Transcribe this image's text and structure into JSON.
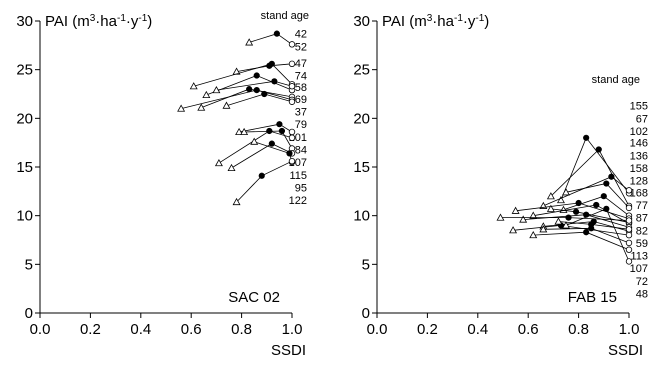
{
  "chart_data": [
    {
      "type": "line",
      "panel_label": "SAC 02",
      "ylabel": "PAI (m³·ha⁻¹·y⁻¹)",
      "xlabel": "SSDI",
      "legend_title": "stand age",
      "xlim": [
        0,
        1.0
      ],
      "ylim": [
        0,
        30
      ],
      "x_ticks": [
        "0.0",
        "0.2",
        "0.4",
        "0.6",
        "0.8",
        "1.0"
      ],
      "y_ticks": [
        "0",
        "5",
        "10",
        "15",
        "20",
        "25",
        "30"
      ],
      "stand_age_labels": [
        {
          "label": "42",
          "y": 28.7
        },
        {
          "label": "52",
          "y": 27.4
        },
        {
          "label": "47",
          "y": 25.7
        },
        {
          "label": "74",
          "y": 24.4
        },
        {
          "label": "58",
          "y": 23.2
        },
        {
          "label": "69",
          "y": 22.0
        },
        {
          "label": "37",
          "y": 20.7
        },
        {
          "label": "79",
          "y": 19.4
        },
        {
          "label": "101",
          "y": 18.1
        },
        {
          "label": "84",
          "y": 16.8
        },
        {
          "label": "107",
          "y": 15.5
        },
        {
          "label": "115",
          "y": 14.2
        },
        {
          "label": "95",
          "y": 12.9
        },
        {
          "label": "122",
          "y": 11.6
        }
      ],
      "series": [
        {
          "x": [
            0.83,
            0.94,
            1.0
          ],
          "y": [
            27.8,
            28.7,
            27.6
          ]
        },
        {
          "x": [
            0.78,
            0.91,
            1.0
          ],
          "y": [
            24.8,
            25.4,
            25.6
          ]
        },
        {
          "x": [
            0.61,
            0.92,
            1.0
          ],
          "y": [
            23.3,
            25.6,
            23.5
          ]
        },
        {
          "x": [
            0.66,
            0.86,
            1.0
          ],
          "y": [
            22.4,
            24.4,
            22.9
          ]
        },
        {
          "x": [
            0.7,
            0.93,
            1.0
          ],
          "y": [
            22.9,
            23.8,
            23.3
          ]
        },
        {
          "x": [
            0.64,
            0.83,
            1.0
          ],
          "y": [
            21.1,
            23.0,
            22.2
          ]
        },
        {
          "x": [
            0.56,
            0.86,
            1.0
          ],
          "y": [
            21.0,
            22.9,
            21.9
          ]
        },
        {
          "x": [
            0.74,
            0.89,
            1.0
          ],
          "y": [
            21.3,
            22.5,
            21.7
          ]
        },
        {
          "x": [
            0.79,
            0.95,
            1.0
          ],
          "y": [
            18.6,
            19.4,
            18.6
          ]
        },
        {
          "x": [
            0.71,
            0.91,
            1.0
          ],
          "y": [
            15.4,
            18.7,
            18.0
          ]
        },
        {
          "x": [
            0.81,
            0.96,
            1.0
          ],
          "y": [
            18.6,
            18.7,
            16.9
          ]
        },
        {
          "x": [
            0.76,
            0.92,
            1.0
          ],
          "y": [
            14.9,
            17.4,
            16.4
          ]
        },
        {
          "x": [
            0.85,
            0.99,
            1.0
          ],
          "y": [
            17.6,
            16.4,
            15.5
          ]
        },
        {
          "x": [
            0.78,
            0.88,
            1.0
          ],
          "y": [
            11.4,
            14.1,
            15.6
          ]
        }
      ]
    },
    {
      "type": "line",
      "panel_label": "FAB 15",
      "ylabel": "PAI (m³·ha⁻¹·y⁻¹)",
      "xlabel": "SSDI",
      "legend_title": "stand age",
      "xlim": [
        0,
        1.0
      ],
      "ylim": [
        0,
        30
      ],
      "x_ticks": [
        "0.0",
        "0.2",
        "0.4",
        "0.6",
        "0.8",
        "1.0"
      ],
      "y_ticks": [
        "0",
        "5",
        "10",
        "15",
        "20",
        "25",
        "30"
      ],
      "stand_age_labels": [
        {
          "label": "155",
          "y": 21.3
        },
        {
          "label": "67",
          "y": 20.0
        },
        {
          "label": "102",
          "y": 18.7
        },
        {
          "label": "146",
          "y": 17.5
        },
        {
          "label": "136",
          "y": 16.2
        },
        {
          "label": "158",
          "y": 14.9
        },
        {
          "label": "128",
          "y": 13.6
        },
        {
          "label": "168",
          "y": 12.4
        },
        {
          "label": "77",
          "y": 11.1
        },
        {
          "label": "87",
          "y": 9.8
        },
        {
          "label": "82",
          "y": 8.5
        },
        {
          "label": "59",
          "y": 7.2
        },
        {
          "label": "113",
          "y": 5.9
        },
        {
          "label": "107",
          "y": 4.6
        },
        {
          "label": "72",
          "y": 3.3
        },
        {
          "label": "48",
          "y": 2.0
        }
      ],
      "series": [
        {
          "x": [
            0.73,
            0.83,
            1.0
          ],
          "y": [
            11.6,
            18.0,
            12.3
          ]
        },
        {
          "x": [
            0.69,
            0.88,
            1.0
          ],
          "y": [
            12.0,
            16.8,
            11.0
          ]
        },
        {
          "x": [
            0.66,
            0.93,
            1.0
          ],
          "y": [
            11.0,
            14.0,
            12.6
          ]
        },
        {
          "x": [
            0.75,
            0.91,
            1.0
          ],
          "y": [
            12.4,
            13.3,
            10.8
          ]
        },
        {
          "x": [
            0.74,
            0.9,
            1.0
          ],
          "y": [
            10.6,
            12.0,
            10.0
          ]
        },
        {
          "x": [
            0.55,
            0.8,
            1.0
          ],
          "y": [
            10.5,
            11.3,
            9.7
          ]
        },
        {
          "x": [
            0.62,
            0.87,
            1.0
          ],
          "y": [
            10.0,
            11.1,
            9.2
          ]
        },
        {
          "x": [
            0.69,
            0.79,
            1.0
          ],
          "y": [
            10.7,
            10.4,
            9.3
          ]
        },
        {
          "x": [
            0.58,
            0.83,
            1.0
          ],
          "y": [
            9.6,
            10.1,
            8.8
          ]
        },
        {
          "x": [
            0.49,
            0.76,
            1.0
          ],
          "y": [
            9.8,
            9.8,
            9.5
          ]
        },
        {
          "x": [
            0.66,
            0.86,
            1.0
          ],
          "y": [
            8.9,
            9.4,
            8.4
          ]
        },
        {
          "x": [
            0.54,
            0.73,
            1.0
          ],
          "y": [
            8.5,
            9.0,
            8.0
          ]
        },
        {
          "x": [
            0.66,
            0.85,
            1.0
          ],
          "y": [
            8.6,
            8.7,
            7.2
          ]
        },
        {
          "x": [
            0.62,
            0.83,
            1.0
          ],
          "y": [
            8.0,
            8.3,
            6.5
          ]
        },
        {
          "x": [
            0.72,
            0.85,
            1.0
          ],
          "y": [
            9.4,
            9.1,
            8.6
          ]
        },
        {
          "x": [
            0.75,
            0.91,
            1.0
          ],
          "y": [
            9.0,
            10.7,
            5.3
          ]
        }
      ]
    }
  ]
}
